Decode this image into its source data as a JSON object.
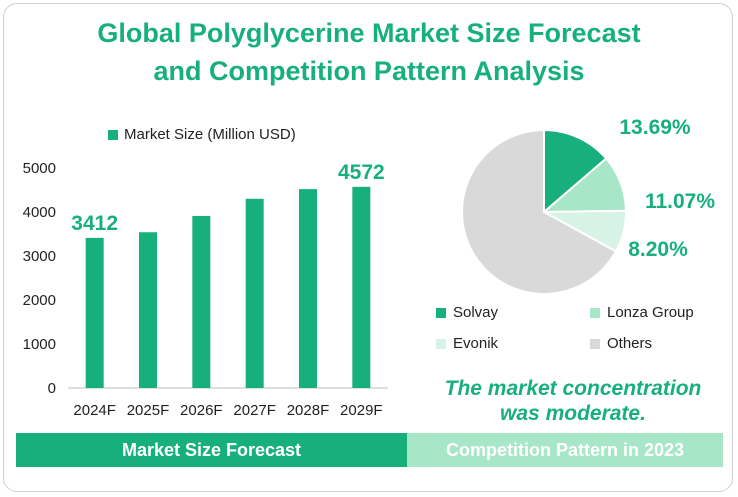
{
  "title_line1": "Global Polyglycerine Market Size Forecast",
  "title_line2": "and Competition Pattern Analysis",
  "colors": {
    "accent": "#17b07c",
    "light": "#a8e6c8",
    "lighter": "#d6f3e5",
    "grey": "#d9d9d9"
  },
  "chart_data": [
    {
      "type": "bar",
      "legend": "Market Size (Million USD)",
      "categories": [
        "2024F",
        "2025F",
        "2026F",
        "2027F",
        "2028F",
        "2029F"
      ],
      "series": [
        {
          "name": "Market Size (Million USD)",
          "values": [
            3412,
            3540,
            3910,
            4300,
            4520,
            4572
          ]
        }
      ],
      "data_labels": {
        "2024F": "3412",
        "2029F": "4572"
      },
      "yticks": [
        "0",
        "1000",
        "2000",
        "3000",
        "4000",
        "5000"
      ],
      "ylim": [
        0,
        5000
      ],
      "grid": false
    },
    {
      "type": "pie",
      "labels": [
        "Solvay",
        "Lonza Group",
        "Evonik",
        "Others"
      ],
      "values": [
        13.69,
        11.07,
        8.2,
        67.04
      ],
      "percent_labels": [
        "13.69%",
        "11.07%",
        "8.20%"
      ],
      "colors": [
        "#17b07c",
        "#a8e6c8",
        "#d6f3e5",
        "#d9d9d9"
      ]
    }
  ],
  "note_line1": "The market concentration",
  "note_line2": "was moderate.",
  "footer_left": "Market Size Forecast",
  "footer_right": "Competition Pattern in 2023"
}
